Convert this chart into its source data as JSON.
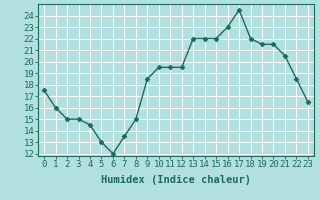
{
  "x": [
    0,
    1,
    2,
    3,
    4,
    5,
    6,
    7,
    8,
    9,
    10,
    11,
    12,
    13,
    14,
    15,
    16,
    17,
    18,
    19,
    20,
    21,
    22,
    23
  ],
  "y": [
    17.5,
    16.0,
    15.0,
    15.0,
    14.5,
    13.0,
    12.0,
    13.5,
    15.0,
    18.5,
    19.5,
    19.5,
    19.5,
    22.0,
    22.0,
    22.0,
    23.0,
    24.5,
    22.0,
    21.5,
    21.5,
    20.5,
    18.5,
    16.5
  ],
  "line_color": "#1a6b5a",
  "marker": "D",
  "marker_size": 2.5,
  "bg_color": "#b2e0e0",
  "grid_color": "#ffffff",
  "xlabel": "Humidex (Indice chaleur)",
  "ylim": [
    11.8,
    25.0
  ],
  "xlim": [
    -0.5,
    23.5
  ],
  "yticks": [
    12,
    13,
    14,
    15,
    16,
    17,
    18,
    19,
    20,
    21,
    22,
    23,
    24
  ],
  "xticks": [
    0,
    1,
    2,
    3,
    4,
    5,
    6,
    7,
    8,
    9,
    10,
    11,
    12,
    13,
    14,
    15,
    16,
    17,
    18,
    19,
    20,
    21,
    22,
    23
  ],
  "tick_label_fontsize": 6.5,
  "xlabel_fontsize": 7.5
}
